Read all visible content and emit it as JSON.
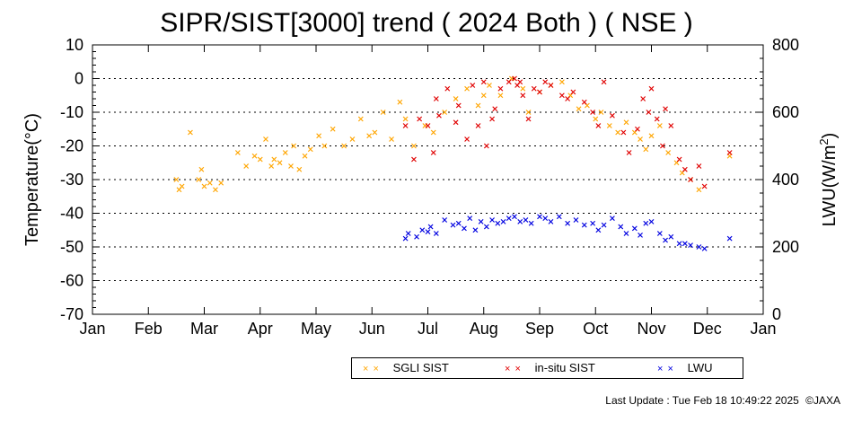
{
  "chart_data": {
    "type": "scatter",
    "title": "SIPR/SIST[3000] trend ( 2024 Both ) ( NSE )",
    "ylabel": "Temperature(°C)",
    "y2label": "LWU(W/m2)",
    "y2label_sup": "2",
    "ylim": [
      -70,
      10
    ],
    "y2lim": [
      0,
      800
    ],
    "yticks": [
      10,
      0,
      -10,
      -20,
      -30,
      -40,
      -50,
      -60,
      -70
    ],
    "y2ticks": [
      800,
      600,
      400,
      200,
      0
    ],
    "xlim": [
      0,
      12
    ],
    "xticks": [
      "Jan",
      "Feb",
      "Mar",
      "Apr",
      "May",
      "Jun",
      "Jul",
      "Aug",
      "Sep",
      "Oct",
      "Nov",
      "Dec",
      "Jan"
    ],
    "grid": true,
    "legend_position": "bottom",
    "series": [
      {
        "name": "SGLI SIST",
        "color": "#ffa500",
        "axis": "left",
        "x": [
          1.5,
          1.55,
          1.6,
          1.75,
          1.9,
          1.95,
          2.0,
          2.1,
          2.2,
          2.3,
          2.6,
          2.75,
          2.9,
          3.0,
          3.1,
          3.2,
          3.25,
          3.35,
          3.45,
          3.55,
          3.6,
          3.7,
          3.8,
          3.9,
          4.05,
          4.15,
          4.3,
          4.5,
          4.65,
          4.8,
          4.95,
          5.05,
          5.2,
          5.35,
          5.5,
          5.6,
          5.75,
          5.95,
          6.1,
          6.3,
          6.5,
          6.7,
          6.9,
          7.0,
          7.1,
          7.3,
          7.5,
          7.7,
          7.8,
          8.0,
          8.2,
          8.4,
          8.55,
          8.7,
          8.85,
          9.0,
          9.1,
          9.25,
          9.4,
          9.55,
          9.7,
          9.8,
          9.9,
          10.0,
          10.15,
          10.3,
          10.45,
          10.55,
          10.7,
          10.85,
          11.4
        ],
        "y": [
          -30,
          -33,
          -32,
          -16,
          -30,
          -27,
          -32,
          -31,
          -33,
          -31,
          -22,
          -26,
          -23,
          -24,
          -18,
          -26,
          -24,
          -25,
          -22,
          -26,
          -20,
          -27,
          -23,
          -21,
          -17,
          -20,
          -15,
          -20,
          -18,
          -12,
          -17,
          -16,
          -10,
          -18,
          -7,
          -12,
          -20,
          -14,
          -16,
          -10,
          -6,
          -3,
          -8,
          -5,
          -2,
          -5,
          0,
          -3,
          -10,
          -4,
          -2,
          -1,
          -5,
          -9,
          -8,
          -12,
          -10,
          -14,
          -16,
          -13,
          -16,
          -18,
          -21,
          -17,
          -14,
          -22,
          -25,
          -28,
          -30,
          -33,
          -23
        ]
      },
      {
        "name": "in-situ SIST",
        "color": "#e00000",
        "axis": "left",
        "x": [
          5.6,
          5.75,
          5.85,
          6.0,
          6.1,
          6.15,
          6.2,
          6.35,
          6.5,
          6.55,
          6.7,
          6.8,
          6.9,
          7.0,
          7.05,
          7.15,
          7.2,
          7.3,
          7.45,
          7.55,
          7.6,
          7.65,
          7.7,
          7.8,
          7.9,
          8.0,
          8.1,
          8.2,
          8.4,
          8.5,
          8.6,
          8.8,
          8.95,
          9.05,
          9.15,
          9.3,
          9.5,
          9.6,
          9.75,
          9.85,
          9.95,
          10.0,
          10.1,
          10.2,
          10.25,
          10.35,
          10.5,
          10.6,
          10.7,
          10.85,
          10.95,
          11.4
        ],
        "y": [
          -14,
          -24,
          -12,
          -14,
          -22,
          -6,
          -11,
          -3,
          -13,
          -8,
          -18,
          -2,
          -14,
          -1,
          -20,
          -12,
          -9,
          -3,
          -1,
          0,
          -2,
          -1,
          -5,
          -12,
          -3,
          -4,
          -1,
          -2,
          -5,
          -6,
          -4,
          -7,
          -10,
          -14,
          -1,
          -11,
          -16,
          -22,
          -15,
          -6,
          -10,
          -3,
          -12,
          -20,
          -9,
          -14,
          -24,
          -27,
          -30,
          -26,
          -32,
          -22
        ]
      },
      {
        "name": "LWU",
        "color": "#0000e0",
        "axis": "right",
        "x": [
          5.6,
          5.65,
          5.8,
          5.9,
          6.0,
          6.05,
          6.15,
          6.3,
          6.45,
          6.55,
          6.65,
          6.75,
          6.85,
          6.95,
          7.05,
          7.15,
          7.25,
          7.35,
          7.45,
          7.55,
          7.65,
          7.75,
          7.85,
          8.0,
          8.1,
          8.2,
          8.35,
          8.5,
          8.65,
          8.8,
          8.95,
          9.05,
          9.15,
          9.3,
          9.45,
          9.55,
          9.7,
          9.8,
          9.9,
          10.0,
          10.15,
          10.25,
          10.35,
          10.5,
          10.6,
          10.7,
          10.85,
          10.95,
          11.4
        ],
        "y": [
          225,
          240,
          230,
          250,
          245,
          260,
          240,
          280,
          265,
          270,
          255,
          285,
          250,
          275,
          260,
          280,
          270,
          275,
          285,
          290,
          275,
          280,
          270,
          290,
          285,
          275,
          290,
          270,
          280,
          265,
          270,
          250,
          265,
          285,
          260,
          240,
          255,
          235,
          270,
          275,
          240,
          220,
          230,
          210,
          210,
          205,
          200,
          195,
          225
        ]
      }
    ]
  },
  "footer": {
    "last_update": "Last Update : Tue Feb 18 10:49:22 2025",
    "copyright": "©JAXA"
  }
}
